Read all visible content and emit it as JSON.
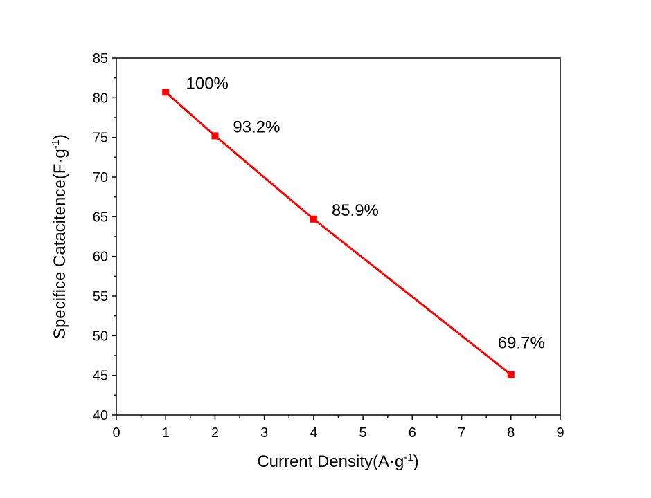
{
  "chart_data": {
    "type": "line",
    "title": "",
    "xlabel": "Current Density(A·g",
    "xlabel_sup": "-1",
    "xlabel_end": ")",
    "ylabel": "Specifice Catacitence(F·g",
    "ylabel_sup": "-1",
    "ylabel_end": ")",
    "xlim": [
      0,
      9
    ],
    "ylim": [
      40,
      85
    ],
    "xticks": [
      "0",
      "1",
      "2",
      "3",
      "4",
      "5",
      "6",
      "7",
      "8",
      "9"
    ],
    "yticks": [
      "40",
      "45",
      "50",
      "55",
      "60",
      "65",
      "70",
      "75",
      "80",
      "85"
    ],
    "series": [
      {
        "x": [
          1,
          2,
          4,
          8
        ],
        "values": [
          80.7,
          75.2,
          64.7,
          45.1
        ],
        "labels": [
          "100%",
          "93.2%",
          "85.9%",
          "69.7%"
        ],
        "color": "#ff0000",
        "marker": "square"
      }
    ],
    "grid": false,
    "legend": "none"
  }
}
